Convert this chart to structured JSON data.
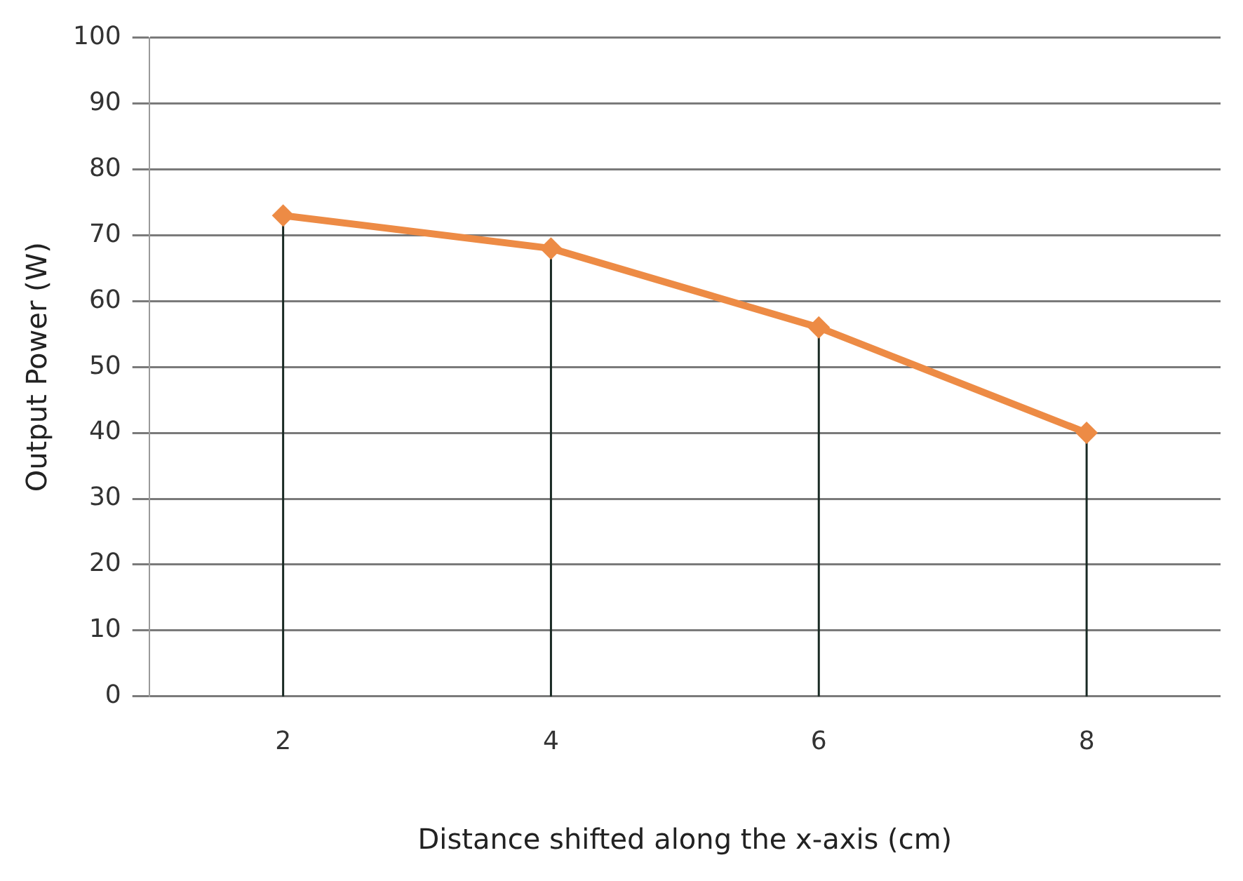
{
  "chart_data": {
    "type": "line",
    "xlabel": "Distance shifted along the x-axis (cm)",
    "ylabel": "Output Power (W)",
    "categories": [
      "2",
      "4",
      "6",
      "8"
    ],
    "series": [
      {
        "color": "#ed8b45",
        "values": [
          73,
          68,
          56,
          40
        ],
        "errors": [
          [
            0,
            73
          ],
          [
            0,
            68
          ],
          [
            0,
            56
          ],
          [
            0,
            40
          ]
        ]
      }
    ],
    "ylim": [
      0,
      100
    ],
    "yticks": [
      0,
      10,
      20,
      30,
      40,
      50,
      60,
      70,
      80,
      90,
      100
    ],
    "grid": "y",
    "legend": false,
    "marker": "diamond",
    "line_style": "solid"
  }
}
